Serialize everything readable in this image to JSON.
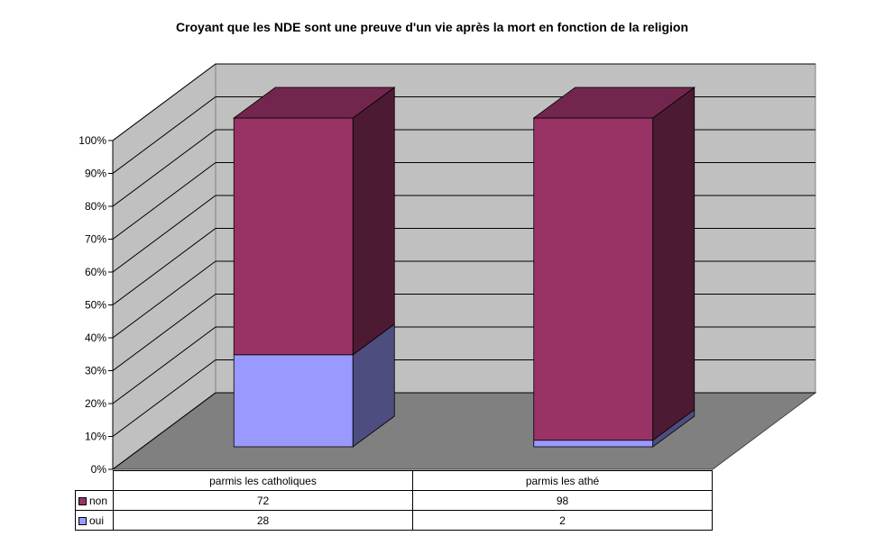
{
  "chart_data": {
    "type": "bar",
    "stacked": true,
    "percent_stacked": true,
    "three_d": true,
    "title": "Croyant que les NDE sont une preuve d'un vie après la mort en fonction de la religion",
    "categories": [
      "parmis les catholiques",
      "parmis les athé"
    ],
    "series": [
      {
        "name": "oui",
        "values": [
          28,
          2
        ],
        "color": "#9999ff"
      },
      {
        "name": "non",
        "values": [
          72,
          98
        ],
        "color": "#993366"
      }
    ],
    "yticks": [
      "0%",
      "10%",
      "20%",
      "30%",
      "40%",
      "50%",
      "60%",
      "70%",
      "80%",
      "90%",
      "100%"
    ],
    "ylim": [
      0,
      100
    ],
    "grid": true,
    "legend": "data-table"
  }
}
